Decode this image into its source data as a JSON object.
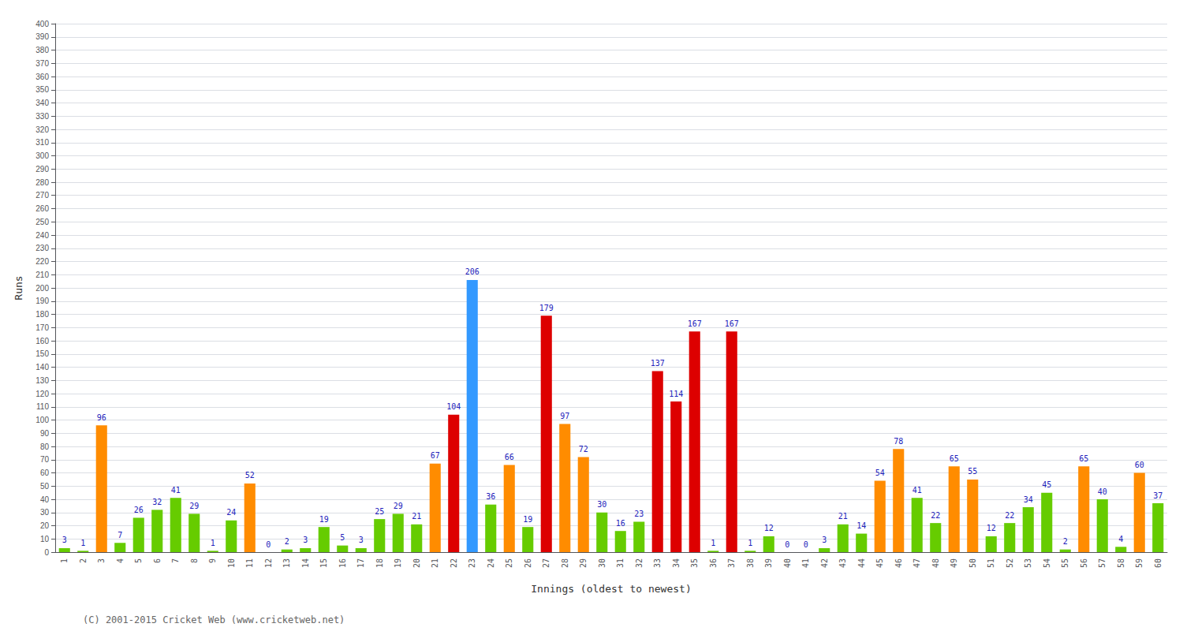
{
  "chart_data": {
    "type": "bar",
    "xlabel": "Innings (oldest to newest)",
    "ylabel": "Runs",
    "annotations": [
      "(C) 2001-2015 Cricket Web (www.cricketweb.net)"
    ],
    "categories": [
      "1",
      "2",
      "3",
      "4",
      "5",
      "6",
      "7",
      "8",
      "9",
      "10",
      "11",
      "12",
      "13",
      "14",
      "15",
      "16",
      "17",
      "18",
      "19",
      "20",
      "21",
      "22",
      "23",
      "24",
      "25",
      "26",
      "27",
      "28",
      "29",
      "30",
      "31",
      "32",
      "33",
      "34",
      "35",
      "36",
      "37",
      "38",
      "39",
      "40",
      "41",
      "42",
      "43",
      "44",
      "45",
      "46",
      "47",
      "48",
      "49",
      "50",
      "51",
      "52",
      "53",
      "54",
      "55",
      "56",
      "57",
      "58",
      "59",
      "60"
    ],
    "values": [
      3,
      1,
      96,
      7,
      26,
      32,
      41,
      29,
      1,
      24,
      52,
      0,
      2,
      3,
      19,
      5,
      3,
      25,
      29,
      21,
      67,
      104,
      206,
      36,
      66,
      19,
      179,
      97,
      72,
      30,
      16,
      23,
      137,
      114,
      167,
      1,
      167,
      1,
      12,
      0,
      0,
      3,
      21,
      14,
      54,
      78,
      41,
      22,
      65,
      55,
      12,
      22,
      34,
      45,
      2,
      65,
      40,
      4,
      60,
      37
    ],
    "colors": [
      "#66cc00",
      "#66cc00",
      "#ff8c00",
      "#66cc00",
      "#66cc00",
      "#66cc00",
      "#66cc00",
      "#66cc00",
      "#66cc00",
      "#66cc00",
      "#ff8c00",
      "#66cc00",
      "#66cc00",
      "#66cc00",
      "#66cc00",
      "#66cc00",
      "#66cc00",
      "#66cc00",
      "#66cc00",
      "#66cc00",
      "#ff8c00",
      "#dd0000",
      "#3399ff",
      "#66cc00",
      "#ff8c00",
      "#66cc00",
      "#dd0000",
      "#ff8c00",
      "#ff8c00",
      "#66cc00",
      "#66cc00",
      "#66cc00",
      "#dd0000",
      "#dd0000",
      "#dd0000",
      "#66cc00",
      "#dd0000",
      "#66cc00",
      "#66cc00",
      "#66cc00",
      "#66cc00",
      "#66cc00",
      "#66cc00",
      "#66cc00",
      "#ff8c00",
      "#ff8c00",
      "#66cc00",
      "#66cc00",
      "#ff8c00",
      "#ff8c00",
      "#66cc00",
      "#66cc00",
      "#66cc00",
      "#66cc00",
      "#66cc00",
      "#ff8c00",
      "#66cc00",
      "#66cc00",
      "#ff8c00",
      "#66cc00"
    ],
    "ylim": [
      0,
      400
    ],
    "yticks": [
      0,
      10,
      20,
      30,
      40,
      50,
      60,
      70,
      80,
      90,
      100,
      110,
      120,
      130,
      140,
      150,
      160,
      170,
      180,
      190,
      200,
      210,
      220,
      230,
      240,
      250,
      260,
      270,
      280,
      290,
      300,
      310,
      320,
      330,
      340,
      350,
      360,
      370,
      380,
      390,
      400
    ],
    "grid": true,
    "data_labels": true
  }
}
